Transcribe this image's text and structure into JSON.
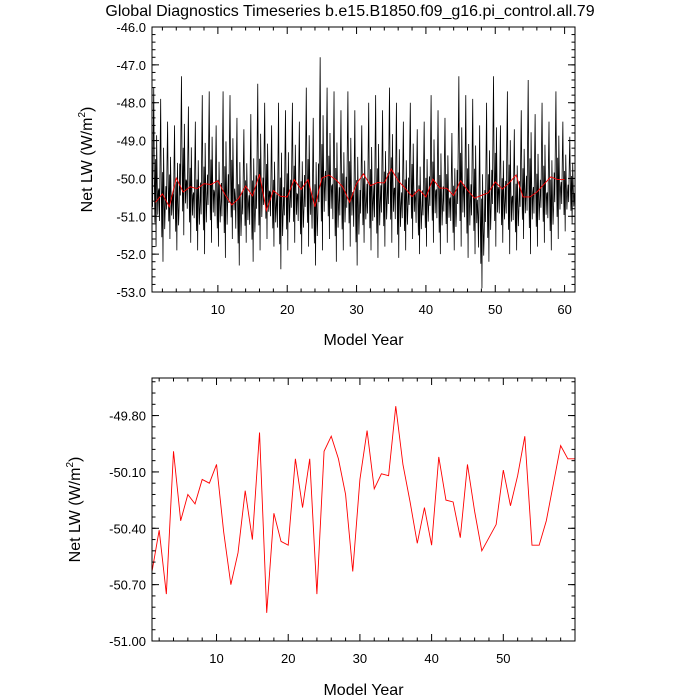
{
  "title": "Global Diagnostics Timeseries b.e15.B1850.f09_g16.pi_control.all.79",
  "colors": {
    "monthly": "#000000",
    "annual": "#ff0000"
  },
  "chart_data": [
    {
      "type": "line",
      "xlabel": "Model Year",
      "ylabel": "Net LW (W/m",
      "ylabel_sup": "2",
      "ylabel_close": ")",
      "xlim": [
        0.5,
        61.5
      ],
      "ylim": [
        -53.0,
        -46.0
      ],
      "xticks": [
        10,
        20,
        30,
        40,
        50,
        60
      ],
      "xtick_labels": [
        "10",
        "20",
        "30",
        "40",
        "50",
        "60"
      ],
      "yticks": [
        -53.0,
        -52.0,
        -51.0,
        -50.0,
        -49.0,
        -48.0,
        -47.0,
        -46.0
      ],
      "ytick_labels": [
        "-53.0",
        "-52.0",
        "-51.0",
        "-50.0",
        "-49.0",
        "-48.0",
        "-47.0",
        "-46.0"
      ],
      "series": [
        {
          "kind": "monthly",
          "color": "#000000",
          "start_x": 0.5,
          "x_step": 0.0833333,
          "peaks": [
            -47.6,
            -47.9,
            -48.5,
            -48.6,
            -47.3,
            -48.1,
            -48.5,
            -47.8,
            -47.7,
            -48.6,
            -47.7,
            -47.8,
            -48.4,
            -48.7,
            -48.3,
            -47.5,
            -48.0,
            -48.6,
            -48.0,
            -48.2,
            -48.0,
            -48.5,
            -47.6,
            -48.4,
            -46.8,
            -47.6,
            -47.7,
            -48.2,
            -47.7,
            -48.2,
            -48.6,
            -48.0,
            -47.8,
            -48.2,
            -47.6,
            -48.0,
            -48.5,
            -48.0,
            -48.7,
            -48.5,
            -47.8,
            -48.2,
            -48.4,
            -48.8,
            -47.3,
            -47.8,
            -47.9,
            -48.6,
            -48.0,
            -47.3,
            -48.6,
            -47.7,
            -48.7,
            -48.2,
            -47.4,
            -48.3,
            -48.0,
            -48.5,
            -47.7,
            -48.5,
            -48.9
          ],
          "troughs": [
            -51.8,
            -52.2,
            -51.6,
            -51.9,
            -51.5,
            -51.7,
            -51.9,
            -52.0,
            -51.7,
            -51.8,
            -52.1,
            -51.6,
            -52.3,
            -51.7,
            -52.2,
            -51.9,
            -51.6,
            -51.8,
            -52.4,
            -51.9,
            -51.7,
            -52.0,
            -51.8,
            -52.3,
            -51.9,
            -51.6,
            -52.2,
            -51.9,
            -51.8,
            -52.3,
            -51.7,
            -51.9,
            -52.1,
            -51.8,
            -51.7,
            -52.1,
            -51.9,
            -51.6,
            -52.0,
            -51.8,
            -51.7,
            -52.0,
            -51.7,
            -51.9,
            -51.8,
            -52.1,
            -52.0,
            -52.9,
            -52.2,
            -51.8,
            -51.7,
            -52.0,
            -51.9,
            -51.6,
            -52.0,
            -51.8,
            -51.7,
            -51.9,
            -51.6,
            -51.4,
            -51.2
          ]
        },
        {
          "kind": "annual",
          "color": "#ff0000",
          "x": [
            1,
            2,
            3,
            4,
            5,
            6,
            7,
            8,
            9,
            10,
            11,
            12,
            13,
            14,
            15,
            16,
            17,
            18,
            19,
            20,
            21,
            22,
            23,
            24,
            25,
            26,
            27,
            28,
            29,
            30,
            31,
            32,
            33,
            34,
            35,
            36,
            37,
            38,
            39,
            40,
            41,
            42,
            43,
            44,
            45,
            46,
            47,
            48,
            49,
            50,
            51,
            52,
            53,
            54,
            55,
            56,
            57,
            58,
            59,
            60
          ],
          "y": [
            -50.63,
            -50.41,
            -50.75,
            -49.99,
            -50.36,
            -50.22,
            -50.27,
            -50.14,
            -50.16,
            -50.06,
            -50.42,
            -50.7,
            -50.53,
            -50.2,
            -50.46,
            -49.89,
            -50.85,
            -50.32,
            -50.47,
            -50.49,
            -50.03,
            -50.29,
            -50.03,
            -50.75,
            -49.99,
            -49.91,
            -50.03,
            -50.22,
            -50.63,
            -50.14,
            -49.88,
            -50.19,
            -50.11,
            -50.12,
            -49.75,
            -50.06,
            -50.26,
            -50.48,
            -50.29,
            -50.49,
            -50.02,
            -50.25,
            -50.26,
            -50.45,
            -50.06,
            -50.31,
            -50.52,
            -50.45,
            -50.38,
            -50.09,
            -50.28,
            -50.12,
            -49.91,
            -50.49,
            -50.49,
            -50.36,
            -50.16,
            -49.96,
            -50.03,
            -50.03
          ]
        }
      ]
    },
    {
      "type": "line",
      "xlabel": "Model Year",
      "ylabel": "Net LW (W/m",
      "ylabel_sup": "2",
      "ylabel_close": ")",
      "xlim": [
        1,
        60
      ],
      "ylim": [
        -51.0,
        -49.6
      ],
      "xticks": [
        10,
        20,
        30,
        40,
        50
      ],
      "xtick_labels": [
        "10",
        "20",
        "30",
        "40",
        "50"
      ],
      "yticks": [
        -51.0,
        -50.7,
        -50.4,
        -50.1,
        -49.8
      ],
      "ytick_labels": [
        "-51.00",
        "-50.70",
        "-50.40",
        "-50.10",
        "-49.80"
      ],
      "series": [
        {
          "kind": "annual",
          "color": "#ff0000",
          "x": [
            1,
            2,
            3,
            4,
            5,
            6,
            7,
            8,
            9,
            10,
            11,
            12,
            13,
            14,
            15,
            16,
            17,
            18,
            19,
            20,
            21,
            22,
            23,
            24,
            25,
            26,
            27,
            28,
            29,
            30,
            31,
            32,
            33,
            34,
            35,
            36,
            37,
            38,
            39,
            40,
            41,
            42,
            43,
            44,
            45,
            46,
            47,
            48,
            49,
            50,
            51,
            52,
            53,
            54,
            55,
            56,
            57,
            58,
            59,
            60
          ],
          "y": [
            -50.63,
            -50.41,
            -50.75,
            -49.99,
            -50.36,
            -50.22,
            -50.27,
            -50.14,
            -50.16,
            -50.06,
            -50.42,
            -50.7,
            -50.53,
            -50.2,
            -50.46,
            -49.89,
            -50.85,
            -50.32,
            -50.47,
            -50.49,
            -50.03,
            -50.29,
            -50.03,
            -50.75,
            -49.99,
            -49.91,
            -50.03,
            -50.22,
            -50.63,
            -50.14,
            -49.88,
            -50.19,
            -50.11,
            -50.12,
            -49.75,
            -50.06,
            -50.26,
            -50.48,
            -50.29,
            -50.49,
            -50.02,
            -50.25,
            -50.26,
            -50.45,
            -50.06,
            -50.31,
            -50.52,
            -50.45,
            -50.38,
            -50.09,
            -50.28,
            -50.12,
            -49.91,
            -50.49,
            -50.49,
            -50.36,
            -50.16,
            -49.96,
            -50.03,
            -50.03
          ]
        }
      ]
    }
  ]
}
